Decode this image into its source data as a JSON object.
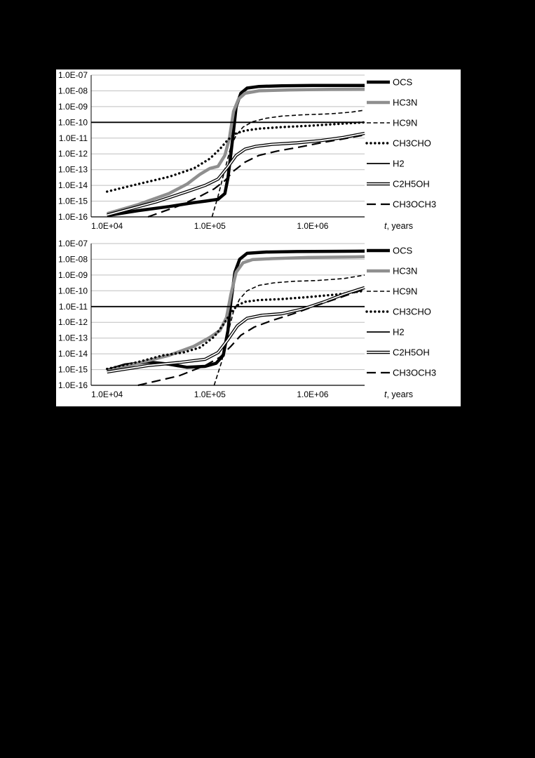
{
  "colors": {
    "page_background": "#000000",
    "figure_background": "#ffffff",
    "grid": "#bfbfbf",
    "axis": "#000000",
    "series_gray": "#8f8f8f"
  },
  "chart_data": [
    {
      "type": "line",
      "title": "",
      "xlabel_italic": "t",
      "xlabel_rest": ", years",
      "legend_position": "right",
      "grid": true,
      "xlim": [
        7000,
        3200000
      ],
      "ylim": [
        1e-16,
        1e-07
      ],
      "x_tick_labels": [
        "1.0E+04",
        "1.0E+05",
        "1.0E+06"
      ],
      "x_tick_values": [
        10000,
        100000,
        1000000
      ],
      "y_tick_labels": [
        "1.0E-07",
        "1.0E-08",
        "1.0E-09",
        "1.0E-10",
        "1.0E-11",
        "1.0E-12",
        "1.0E-13",
        "1.0E-14",
        "1.0E-15",
        "1.0E-16"
      ],
      "y_tick_values": [
        1e-07,
        1e-08,
        1e-09,
        1e-10,
        1e-11,
        1e-12,
        1e-13,
        1e-14,
        1e-15,
        1e-16
      ],
      "series": [
        {
          "name": "OCS",
          "style": "thick-black",
          "points": [
            [
              10000,
              1.2e-16
            ],
            [
              20000,
              2.5e-16
            ],
            [
              40000,
              4.5e-16
            ],
            [
              70000,
              8e-16
            ],
            [
              90000,
              1e-15
            ],
            [
              120000,
              1.3e-15
            ],
            [
              140000,
              3e-15
            ],
            [
              150000,
              3e-14
            ],
            [
              160000,
              1e-12
            ],
            [
              170000,
              3e-11
            ],
            [
              180000,
              1e-09
            ],
            [
              200000,
              7e-09
            ],
            [
              230000,
              1.5e-08
            ],
            [
              300000,
              1.9e-08
            ],
            [
              500000,
              2.1e-08
            ],
            [
              1000000,
              2.2e-08
            ],
            [
              3200000,
              2.2e-08
            ]
          ]
        },
        {
          "name": "HC3N",
          "style": "thick-gray",
          "points": [
            [
              10000,
              1.6e-16
            ],
            [
              20000,
              6e-16
            ],
            [
              40000,
              3e-15
            ],
            [
              60000,
              1.2e-14
            ],
            [
              80000,
              5e-14
            ],
            [
              100000,
              1.2e-13
            ],
            [
              120000,
              1.6e-13
            ],
            [
              140000,
              8e-13
            ],
            [
              155000,
              1e-11
            ],
            [
              170000,
              5e-10
            ],
            [
              190000,
              3e-09
            ],
            [
              220000,
              7e-09
            ],
            [
              300000,
              1e-08
            ],
            [
              600000,
              1.15e-08
            ],
            [
              1500000,
              1.25e-08
            ],
            [
              3200000,
              1.3e-08
            ]
          ]
        },
        {
          "name": "HC9N",
          "style": "dashed",
          "points": [
            [
              105000,
              1e-16
            ],
            [
              120000,
              2e-15
            ],
            [
              140000,
              1e-13
            ],
            [
              160000,
              3e-12
            ],
            [
              180000,
              1.5e-11
            ],
            [
              210000,
              5e-11
            ],
            [
              260000,
              1.1e-10
            ],
            [
              350000,
              1.8e-10
            ],
            [
              500000,
              2.5e-10
            ],
            [
              800000,
              3e-10
            ],
            [
              1500000,
              3.5e-10
            ],
            [
              2400000,
              4.5e-10
            ],
            [
              3200000,
              6e-10
            ]
          ]
        },
        {
          "name": "CH3CHO",
          "style": "dotted",
          "points": [
            [
              10000,
              4e-15
            ],
            [
              20000,
              1.2e-14
            ],
            [
              40000,
              3.5e-14
            ],
            [
              70000,
              1.2e-13
            ],
            [
              100000,
              5e-13
            ],
            [
              125000,
              2e-12
            ],
            [
              150000,
              8e-12
            ],
            [
              180000,
              2e-11
            ],
            [
              220000,
              3e-11
            ],
            [
              300000,
              4e-11
            ],
            [
              500000,
              5e-11
            ],
            [
              900000,
              6e-11
            ],
            [
              1800000,
              8e-11
            ],
            [
              3200000,
              1e-10
            ]
          ]
        },
        {
          "name": "H2",
          "style": "solid-thin",
          "points": [
            [
              7000,
              1e-10
            ],
            [
              3200000,
              1e-10
            ]
          ]
        },
        {
          "name": "C2H5OH",
          "style": "double",
          "points": [
            [
              10000,
              1.3e-16
            ],
            [
              30000,
              9e-16
            ],
            [
              60000,
              4e-15
            ],
            [
              90000,
              1e-14
            ],
            [
              120000,
              2.5e-14
            ],
            [
              150000,
              1.5e-13
            ],
            [
              180000,
              8e-13
            ],
            [
              220000,
              2e-12
            ],
            [
              280000,
              3e-12
            ],
            [
              400000,
              4e-12
            ],
            [
              700000,
              5e-12
            ],
            [
              1200000,
              7e-12
            ],
            [
              2000000,
              1.1e-11
            ],
            [
              3200000,
              2e-11
            ]
          ]
        },
        {
          "name": "CH3OCH3",
          "style": "long-dash",
          "points": [
            [
              25000,
              1e-16
            ],
            [
              50000,
              5e-16
            ],
            [
              80000,
              2e-15
            ],
            [
              110000,
              6e-15
            ],
            [
              140000,
              2e-14
            ],
            [
              170000,
              8e-14
            ],
            [
              220000,
              3e-13
            ],
            [
              300000,
              8e-13
            ],
            [
              450000,
              1.5e-12
            ],
            [
              700000,
              2.5e-12
            ],
            [
              1200000,
              5e-12
            ],
            [
              2000000,
              9e-12
            ],
            [
              3200000,
              1.6e-11
            ]
          ]
        }
      ]
    },
    {
      "type": "line",
      "title": "",
      "xlabel_italic": "t",
      "xlabel_rest": ", years",
      "legend_position": "right",
      "grid": true,
      "xlim": [
        7000,
        3200000
      ],
      "ylim": [
        1e-16,
        1e-07
      ],
      "x_tick_labels": [
        "1.0E+04",
        "1.0E+05",
        "1.0E+06"
      ],
      "x_tick_values": [
        10000,
        100000,
        1000000
      ],
      "y_tick_labels": [
        "1.0E-07",
        "1.0E-08",
        "1.0E-09",
        "1.0E-10",
        "1.0E-11",
        "1.0E-12",
        "1.0E-13",
        "1.0E-14",
        "1.0E-15",
        "1.0E-16"
      ],
      "y_tick_values": [
        1e-07,
        1e-08,
        1e-09,
        1e-10,
        1e-11,
        1e-12,
        1e-13,
        1e-14,
        1e-15,
        1e-16
      ],
      "series": [
        {
          "name": "OCS",
          "style": "thick-black",
          "points": [
            [
              10000,
              9e-16
            ],
            [
              15000,
              2e-15
            ],
            [
              25000,
              3e-15
            ],
            [
              40000,
              2.2e-15
            ],
            [
              60000,
              1.4e-15
            ],
            [
              90000,
              1.6e-15
            ],
            [
              115000,
              2.5e-15
            ],
            [
              135000,
              8e-15
            ],
            [
              150000,
              3e-13
            ],
            [
              160000,
              2e-11
            ],
            [
              175000,
              1.5e-09
            ],
            [
              195000,
              1e-08
            ],
            [
              230000,
              2.4e-08
            ],
            [
              350000,
              2.9e-08
            ],
            [
              700000,
              3.1e-08
            ],
            [
              1500000,
              3.2e-08
            ],
            [
              3200000,
              3.3e-08
            ]
          ]
        },
        {
          "name": "HC3N",
          "style": "thick-gray",
          "points": [
            [
              10000,
              8e-16
            ],
            [
              20000,
              2.5e-15
            ],
            [
              40000,
              8e-15
            ],
            [
              70000,
              3e-14
            ],
            [
              100000,
              1.1e-13
            ],
            [
              125000,
              3e-13
            ],
            [
              145000,
              2e-12
            ],
            [
              160000,
              6e-11
            ],
            [
              180000,
              1.5e-09
            ],
            [
              210000,
              6e-09
            ],
            [
              260000,
              9.5e-09
            ],
            [
              400000,
              1.1e-08
            ],
            [
              900000,
              1.3e-08
            ],
            [
              3200000,
              1.45e-08
            ]
          ]
        },
        {
          "name": "HC9N",
          "style": "dashed",
          "points": [
            [
              110000,
              1e-16
            ],
            [
              130000,
              3e-15
            ],
            [
              150000,
              2e-13
            ],
            [
              170000,
              5e-12
            ],
            [
              195000,
              3e-11
            ],
            [
              230000,
              1e-10
            ],
            [
              300000,
              2.2e-10
            ],
            [
              420000,
              3.2e-10
            ],
            [
              650000,
              4e-10
            ],
            [
              1100000,
              4.5e-10
            ],
            [
              2000000,
              6e-10
            ],
            [
              3200000,
              1e-09
            ]
          ]
        },
        {
          "name": "CH3CHO",
          "style": "dotted",
          "points": [
            [
              10000,
              1.1e-15
            ],
            [
              20000,
              3e-15
            ],
            [
              35000,
              8e-15
            ],
            [
              55000,
              1.2e-14
            ],
            [
              80000,
              2.5e-14
            ],
            [
              110000,
              1.2e-13
            ],
            [
              135000,
              7e-13
            ],
            [
              160000,
              4e-12
            ],
            [
              185000,
              1.2e-11
            ],
            [
              220000,
              2e-11
            ],
            [
              300000,
              2.6e-11
            ],
            [
              500000,
              3e-11
            ],
            [
              900000,
              4e-11
            ],
            [
              1800000,
              6e-11
            ],
            [
              3200000,
              1e-10
            ]
          ]
        },
        {
          "name": "H2",
          "style": "solid-thin",
          "points": [
            [
              7000,
              1e-11
            ],
            [
              3200000,
              1e-11
            ]
          ]
        },
        {
          "name": "C2H5OH",
          "style": "double",
          "points": [
            [
              10000,
              7e-16
            ],
            [
              25000,
              1.8e-15
            ],
            [
              50000,
              2.8e-15
            ],
            [
              90000,
              4.5e-15
            ],
            [
              120000,
              1.2e-14
            ],
            [
              150000,
              8e-14
            ],
            [
              185000,
              6e-13
            ],
            [
              230000,
              1.8e-12
            ],
            [
              320000,
              2.8e-12
            ],
            [
              500000,
              3.5e-12
            ],
            [
              800000,
              7e-12
            ],
            [
              1300000,
              2e-11
            ],
            [
              2000000,
              6e-11
            ],
            [
              3200000,
              1.6e-10
            ]
          ]
        },
        {
          "name": "CH3OCH3",
          "style": "long-dash",
          "points": [
            [
              20000,
              1e-16
            ],
            [
              50000,
              4e-16
            ],
            [
              90000,
              1.8e-15
            ],
            [
              125000,
              6e-15
            ],
            [
              160000,
              3e-14
            ],
            [
              200000,
              1.5e-13
            ],
            [
              270000,
              5e-13
            ],
            [
              400000,
              1.3e-12
            ],
            [
              650000,
              3.5e-12
            ],
            [
              1100000,
              1.2e-11
            ],
            [
              1900000,
              4e-11
            ],
            [
              3200000,
              1.3e-10
            ]
          ]
        }
      ]
    }
  ]
}
